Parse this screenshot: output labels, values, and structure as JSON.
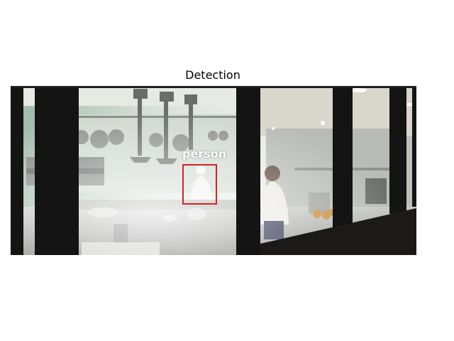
{
  "figure": {
    "title": "Detection"
  },
  "detection": {
    "label": "person",
    "box_color": "#d32222"
  }
}
